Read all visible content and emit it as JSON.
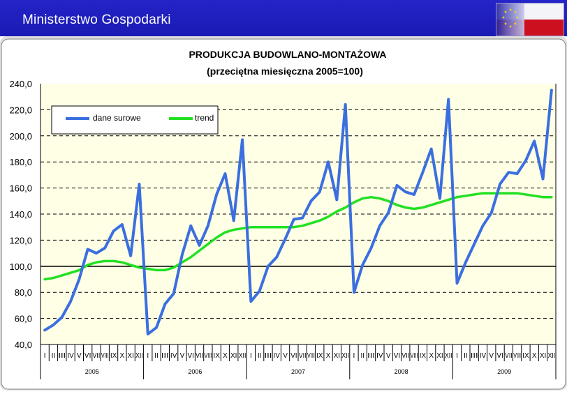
{
  "header": {
    "title": "Ministerstwo Gospodarki"
  },
  "colors": {
    "header_bg": "#2222c0",
    "raw_series": "#3b6fe0",
    "trend_series": "#22e022",
    "plot_bg": "#ffffe6"
  },
  "chart_data": {
    "type": "line",
    "title": "PRODUKCJA BUDOWLANO-MONTAŻOWA",
    "subtitle": "(przeciętna miesięczna 2005=100)",
    "ylim": [
      40,
      240
    ],
    "yticks": [
      "240,0",
      "220,0",
      "200,0",
      "180,0",
      "160,0",
      "140,0",
      "120,0",
      "100,0",
      "80,0",
      "60,0",
      "40,0"
    ],
    "month_labels": [
      "I",
      "II",
      "III",
      "IV",
      "V",
      "VI",
      "VII",
      "VIII",
      "IX",
      "X",
      "XI",
      "XII"
    ],
    "years": [
      "2005",
      "2006",
      "2007",
      "2008",
      "2009"
    ],
    "legend": {
      "position": "top-left"
    },
    "series": [
      {
        "name": "dane surowe",
        "values": [
          51,
          55,
          61,
          73,
          90,
          113,
          110,
          114,
          127,
          132,
          108,
          163,
          48,
          53,
          71,
          79,
          109,
          131,
          116,
          131,
          155,
          171,
          135,
          197,
          73,
          81,
          100,
          107,
          121,
          136,
          137,
          150,
          157,
          180,
          151,
          224,
          80,
          101,
          114,
          131,
          141,
          162,
          157,
          155,
          172,
          190,
          152,
          228,
          87,
          103,
          117,
          131,
          141,
          163,
          172,
          171,
          181,
          196,
          167,
          235
        ]
      },
      {
        "name": "trend",
        "values": [
          90,
          91,
          93,
          95,
          97,
          101,
          103,
          104,
          104,
          103,
          101,
          99,
          98,
          97,
          97,
          99,
          103,
          107,
          112,
          117,
          122,
          126,
          128,
          129,
          130,
          130,
          130,
          130,
          130,
          130,
          131,
          133,
          135,
          138,
          142,
          145,
          149,
          152,
          153,
          152,
          150,
          147,
          145,
          144,
          145,
          147,
          149,
          151,
          153,
          154,
          155,
          156,
          156,
          156,
          156,
          156,
          155,
          154,
          153,
          153
        ]
      }
    ]
  }
}
